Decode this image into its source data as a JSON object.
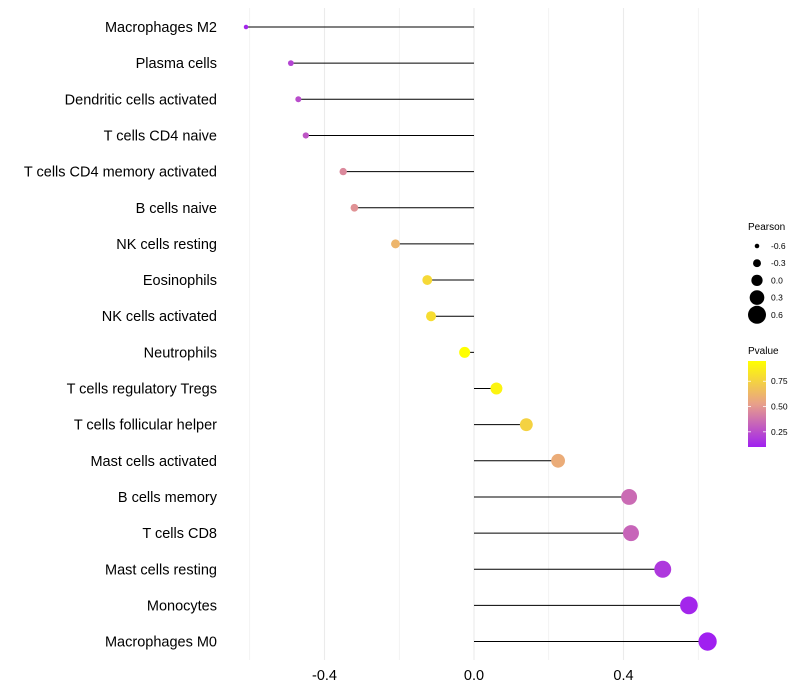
{
  "chart_data": {
    "type": "lollipop",
    "title": "",
    "xlabel": "",
    "ylabel": "",
    "xlim": [
      -0.66,
      0.72
    ],
    "xticks": [
      -0.4,
      0.0,
      0.4
    ],
    "xtick_labels": [
      "-0.4",
      "0.0",
      "0.4"
    ],
    "grid": true,
    "categories": [
      "Macrophages M2",
      "Plasma cells",
      "Dendritic cells activated",
      "T cells CD4 naive",
      "T cells CD4 memory activated",
      "B cells naive",
      "NK cells resting",
      "Eosinophils",
      "NK cells activated",
      "Neutrophils",
      "T cells regulatory  Tregs ",
      "T cells follicular helper",
      "Mast cells activated",
      "B cells memory",
      "T cells CD8",
      "Mast cells resting",
      "Monocytes",
      "Macrophages M0"
    ],
    "pearson": [
      -0.61,
      -0.49,
      -0.47,
      -0.45,
      -0.35,
      -0.32,
      -0.21,
      -0.125,
      -0.115,
      -0.025,
      0.06,
      0.14,
      0.225,
      0.415,
      0.42,
      0.505,
      0.575,
      0.625
    ],
    "pvalue": [
      0.12,
      0.22,
      0.25,
      0.28,
      0.45,
      0.48,
      0.62,
      0.78,
      0.8,
      0.95,
      0.9,
      0.75,
      0.58,
      0.35,
      0.33,
      0.18,
      0.12,
      0.08
    ],
    "legend_size": {
      "title": "Pearson",
      "values": [
        -0.6,
        -0.3,
        0.0,
        0.3,
        0.6
      ],
      "labels": [
        "-0.6",
        "-0.3",
        "0.0",
        "0.3",
        "0.6"
      ]
    },
    "legend_color": {
      "title": "Pvalue",
      "ticks": [
        0.75,
        0.5,
        0.25
      ],
      "labels": [
        "0.75",
        "0.50",
        "0.25"
      ],
      "range": [
        0.1,
        0.95
      ]
    },
    "colors": {
      "low": "#a020f0",
      "mid": "#e8a08a",
      "high": "#ffff00",
      "stem": "#000000",
      "grid": "#ebebeb"
    }
  }
}
